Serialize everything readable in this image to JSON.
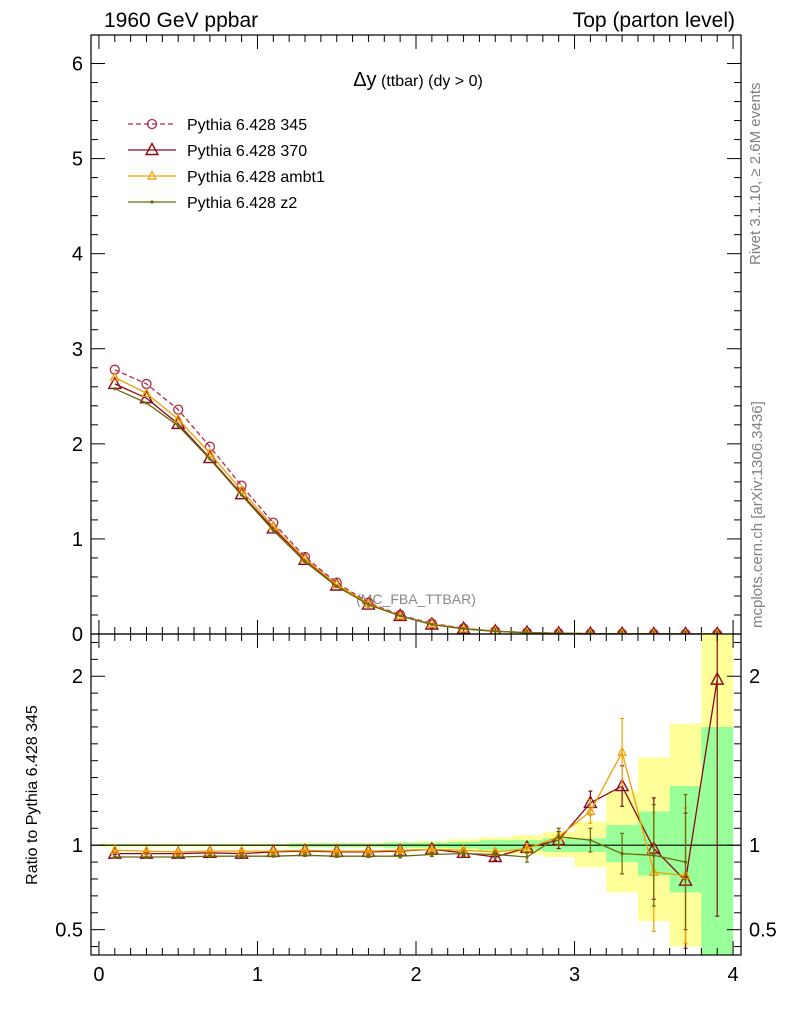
{
  "header": {
    "left_title": "1960 GeV ppbar",
    "right_title": "Top (parton level)"
  },
  "side_labels": {
    "rivet": "Rivet 3.1.10, ≥ 2.6M events",
    "mcplots": "mcplots.cern.ch [arXiv:1306.3436]"
  },
  "chart_data": [
    {
      "type": "line",
      "title_main": "Δy",
      "title_paren": " (ttbar) (dy > 0)",
      "watermark": "(MC_FBA_TTBAR)",
      "xlabel": "",
      "ylabel": "",
      "xlim": [
        -0.05,
        4.05
      ],
      "ylim": [
        0,
        6.3
      ],
      "x_ticks": [
        0,
        1,
        2,
        3,
        4
      ],
      "y_ticks": [
        0,
        1,
        2,
        3,
        4,
        5,
        6
      ],
      "legend_position": "top-left",
      "x": [
        0.1,
        0.3,
        0.5,
        0.7,
        0.9,
        1.1,
        1.3,
        1.5,
        1.7,
        1.9,
        2.1,
        2.3,
        2.5,
        2.7,
        2.9,
        3.1,
        3.3,
        3.5,
        3.7,
        3.9
      ],
      "series": [
        {
          "name": "Pythia 6.428 345",
          "color": "#b22a4a",
          "marker": "circle",
          "dashed": true,
          "values": [
            2.78,
            2.63,
            2.36,
            1.97,
            1.56,
            1.17,
            0.81,
            0.54,
            0.33,
            0.2,
            0.11,
            0.06,
            0.03,
            0.015,
            0.007,
            0.004,
            0.002,
            0.001,
            0.0005,
            0.0002
          ]
        },
        {
          "name": "Pythia 6.428 370",
          "color": "#8b0a1a",
          "marker": "triangle-big",
          "dashed": false,
          "values": [
            2.63,
            2.48,
            2.21,
            1.85,
            1.47,
            1.11,
            0.78,
            0.51,
            0.31,
            0.19,
            0.1,
            0.055,
            0.028,
            0.015,
            0.007,
            0.004,
            0.003,
            0.001,
            0.0004,
            0.0004
          ]
        },
        {
          "name": "Pythia 6.428 ambt1",
          "color": "#f0a000",
          "marker": "triangle-small",
          "dashed": false,
          "values": [
            2.7,
            2.53,
            2.26,
            1.9,
            1.51,
            1.13,
            0.79,
            0.52,
            0.32,
            0.19,
            0.105,
            0.055,
            0.03,
            0.015,
            0.007,
            0.004,
            0.003,
            0.001,
            0.0004,
            0.0001
          ]
        },
        {
          "name": "Pythia 6.428 z2",
          "color": "#6b6b0a",
          "marker": "dot",
          "dashed": false,
          "values": [
            2.58,
            2.43,
            2.19,
            1.84,
            1.46,
            1.09,
            0.76,
            0.5,
            0.31,
            0.19,
            0.1,
            0.055,
            0.028,
            0.014,
            0.007,
            0.004,
            0.002,
            0.001,
            0.0004,
            0.0001
          ]
        }
      ]
    },
    {
      "type": "line",
      "ylabel": "Ratio to Pythia 6.428 345",
      "xlabel": "",
      "xlim": [
        -0.05,
        4.05
      ],
      "ylim": [
        0.35,
        2.25
      ],
      "x_ticks": [
        0,
        1,
        2,
        3,
        4
      ],
      "y_ticks": [
        0.5,
        1,
        2
      ],
      "reference_line": 1,
      "band": {
        "x_edges": [
          0,
          0.2,
          0.4,
          0.6,
          0.8,
          1.0,
          1.2,
          1.4,
          1.6,
          1.8,
          2.0,
          2.2,
          2.4,
          2.6,
          2.8,
          3.0,
          3.2,
          3.4,
          3.6,
          3.8,
          4.0
        ],
        "inner_lo": [
          0.995,
          0.995,
          0.995,
          0.995,
          0.995,
          0.995,
          0.99,
          0.99,
          0.99,
          0.985,
          0.985,
          0.98,
          0.97,
          0.97,
          0.96,
          0.96,
          0.9,
          0.82,
          0.72,
          0.35
        ],
        "inner_hi": [
          1.005,
          1.005,
          1.005,
          1.005,
          1.005,
          1.005,
          1.01,
          1.01,
          1.01,
          1.015,
          1.015,
          1.02,
          1.03,
          1.03,
          1.04,
          1.04,
          1.12,
          1.2,
          1.35,
          1.7
        ],
        "outer_lo": [
          0.99,
          0.99,
          0.99,
          0.99,
          0.99,
          0.99,
          0.985,
          0.985,
          0.985,
          0.98,
          0.975,
          0.965,
          0.955,
          0.945,
          0.93,
          0.87,
          0.72,
          0.55,
          0.4,
          0.35
        ],
        "outer_hi": [
          1.01,
          1.01,
          1.01,
          1.01,
          1.01,
          1.01,
          1.015,
          1.015,
          1.015,
          1.02,
          1.025,
          1.035,
          1.045,
          1.06,
          1.08,
          1.14,
          1.32,
          1.52,
          1.72,
          2.25
        ]
      },
      "x": [
        0.1,
        0.3,
        0.5,
        0.7,
        0.9,
        1.1,
        1.3,
        1.5,
        1.7,
        1.9,
        2.1,
        2.3,
        2.5,
        2.7,
        2.9,
        3.1,
        3.3,
        3.5,
        3.7,
        3.9
      ],
      "series": [
        {
          "name": "Pythia 6.428 370",
          "color": "#8b0a1a",
          "marker": "triangle-big",
          "values": [
            0.95,
            0.95,
            0.95,
            0.955,
            0.95,
            0.96,
            0.965,
            0.96,
            0.96,
            0.965,
            0.975,
            0.955,
            0.93,
            0.985,
            1.03,
            1.25,
            1.35,
            0.98,
            0.79,
            1.98
          ],
          "err": [
            0.005,
            0.005,
            0.005,
            0.005,
            0.005,
            0.005,
            0.006,
            0.007,
            0.008,
            0.01,
            0.012,
            0.015,
            0.02,
            0.03,
            0.05,
            0.07,
            0.12,
            0.3,
            0.4,
            1.4
          ]
        },
        {
          "name": "Pythia 6.428 ambt1",
          "color": "#f0a000",
          "marker": "triangle-small",
          "values": [
            0.97,
            0.965,
            0.96,
            0.965,
            0.965,
            0.965,
            0.97,
            0.965,
            0.965,
            0.97,
            0.975,
            0.97,
            0.96,
            0.98,
            1.05,
            1.2,
            1.55,
            0.84,
            0.82,
            0.0
          ],
          "err": [
            0.005,
            0.005,
            0.005,
            0.005,
            0.005,
            0.005,
            0.006,
            0.007,
            0.008,
            0.01,
            0.012,
            0.015,
            0.02,
            0.03,
            0.05,
            0.07,
            0.2,
            0.35,
            0.4,
            0.0
          ]
        },
        {
          "name": "Pythia 6.428 z2",
          "color": "#6b6b0a",
          "marker": "dot",
          "values": [
            0.93,
            0.93,
            0.93,
            0.935,
            0.935,
            0.935,
            0.94,
            0.935,
            0.935,
            0.935,
            0.945,
            0.95,
            0.945,
            0.93,
            1.05,
            1.03,
            0.95,
            0.94,
            0.9,
            0.0
          ],
          "err": [
            0.005,
            0.005,
            0.005,
            0.005,
            0.005,
            0.005,
            0.006,
            0.007,
            0.008,
            0.01,
            0.012,
            0.015,
            0.02,
            0.03,
            0.05,
            0.07,
            0.12,
            0.3,
            0.4,
            0.0
          ]
        }
      ]
    }
  ]
}
